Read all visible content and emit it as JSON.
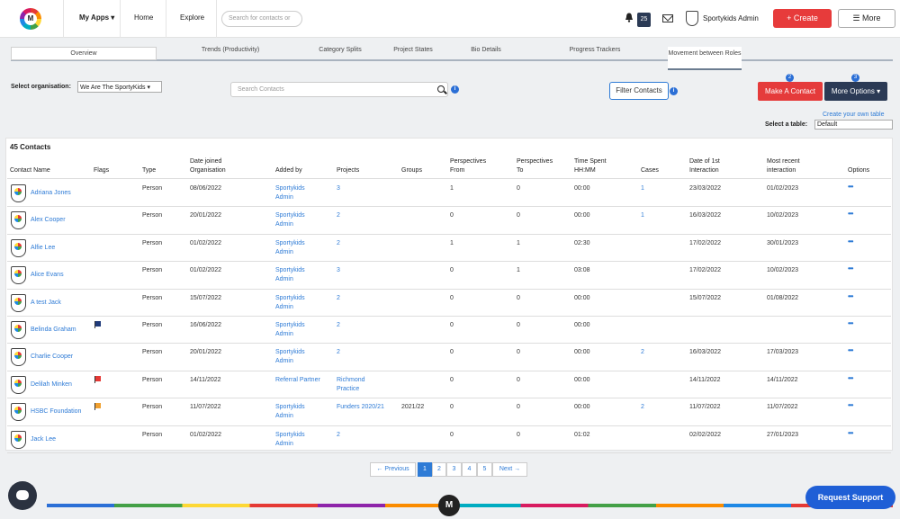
{
  "nav": {
    "my_apps": "My Apps ▾",
    "home": "Home",
    "explore": "Explore",
    "search_placeholder": "Search for contacts or",
    "notif_count": "25",
    "username": "Sportykids Admin",
    "create": "+ Create",
    "more": "☰ More"
  },
  "tabs": {
    "overview": "Overview",
    "trends": "Trends (Productivity)",
    "category": "Category Splits",
    "states": "Project States",
    "bio": "Bio Details",
    "progress": "Progress Trackers",
    "movement": "Movement between Roles"
  },
  "toolbar": {
    "org_label": "Select organisation:",
    "org_value": "We Are The SportyKids ▾",
    "search_placeholder": "Search Contacts",
    "filter": "Filter Contacts",
    "badge1": "2",
    "badge2": "3",
    "make_contact": "Make A Contact",
    "more_options": "More Options ▾",
    "create_own_table": "Create your own table",
    "select_table_label": "Select a table:",
    "select_table_value": "Default"
  },
  "table": {
    "count": "45 Contacts",
    "headers": {
      "name": "Contact Name",
      "flags": "Flags",
      "type": "Type",
      "date_joined_1": "Date joined",
      "date_joined_2": "Organisation",
      "added_by": "Added by",
      "projects": "Projects",
      "groups": "Groups",
      "persp_from_1": "Perspectives",
      "persp_from_2": "From",
      "persp_to_1": "Perspectives",
      "persp_to_2": "To",
      "time_1": "Time Spent",
      "time_2": "HH:MM",
      "cases": "Cases",
      "first_1": "Date of 1st",
      "first_2": "Interaction",
      "recent_1": "Most recent",
      "recent_2": "interaction",
      "options": "Options"
    },
    "rows": [
      {
        "name": "Adriana Jones",
        "type": "Person",
        "date": "08/06/2022",
        "added1": "Sportykids",
        "added2": "Admin",
        "projects1": "3",
        "projects2": "",
        "groups": "",
        "from": "1",
        "to": "0",
        "time": "00:00",
        "cases": "1",
        "first": "23/03/2022",
        "recent": "01/02/2023",
        "flag": "",
        "opt": "•••"
      },
      {
        "name": "Alex Cooper",
        "type": "Person",
        "date": "20/01/2022",
        "added1": "Sportykids",
        "added2": "Admin",
        "projects1": "2",
        "projects2": "",
        "groups": "",
        "from": "0",
        "to": "0",
        "time": "00:00",
        "cases": "1",
        "first": "16/03/2022",
        "recent": "10/02/2023",
        "flag": "",
        "opt": "•••"
      },
      {
        "name": "Alfie Lee",
        "type": "Person",
        "date": "01/02/2022",
        "added1": "Sportykids",
        "added2": "Admin",
        "projects1": "2",
        "projects2": "",
        "groups": "",
        "from": "1",
        "to": "1",
        "time": "02:30",
        "cases": "",
        "first": "17/02/2022",
        "recent": "30/01/2023",
        "flag": "",
        "opt": "•••"
      },
      {
        "name": "Alice Evans",
        "type": "Person",
        "date": "01/02/2022",
        "added1": "Sportykids",
        "added2": "Admin",
        "projects1": "3",
        "projects2": "",
        "groups": "",
        "from": "0",
        "to": "1",
        "time": "03:08",
        "cases": "",
        "first": "17/02/2022",
        "recent": "10/02/2023",
        "flag": "",
        "opt": "•••"
      },
      {
        "name": "A test Jack",
        "type": "Person",
        "date": "15/07/2022",
        "added1": "Sportykids",
        "added2": "Admin",
        "projects1": "2",
        "projects2": "",
        "groups": "",
        "from": "0",
        "to": "0",
        "time": "00:00",
        "cases": "",
        "first": "15/07/2022",
        "recent": "01/08/2022",
        "flag": "",
        "opt": "•••"
      },
      {
        "name": "Belinda Graham",
        "type": "Person",
        "date": "16/06/2022",
        "added1": "Sportykids",
        "added2": "Admin",
        "projects1": "2",
        "projects2": "",
        "groups": "",
        "from": "0",
        "to": "0",
        "time": "00:00",
        "cases": "",
        "first": "",
        "recent": "",
        "flag": "#1f3a7a",
        "opt": "•••"
      },
      {
        "name": "Charlie Cooper",
        "type": "Person",
        "date": "20/01/2022",
        "added1": "Sportykids",
        "added2": "Admin",
        "projects1": "2",
        "projects2": "",
        "groups": "",
        "from": "0",
        "to": "0",
        "time": "00:00",
        "cases": "2",
        "first": "16/03/2022",
        "recent": "17/03/2023",
        "flag": "",
        "opt": "•••"
      },
      {
        "name": "Delilah Minken",
        "type": "Person",
        "date": "14/11/2022",
        "added1": "Referral Partner",
        "added2": "",
        "projects1": "Richmond",
        "projects2": "Practice",
        "groups": "",
        "from": "0",
        "to": "0",
        "time": "00:00",
        "cases": "",
        "first": "14/11/2022",
        "recent": "14/11/2022",
        "flag": "#e53935",
        "opt": "•••"
      },
      {
        "name": "HSBC Foundation",
        "type": "Person",
        "date": "11/07/2022",
        "added1": "Sportykids",
        "added2": "Admin",
        "projects1": "Funders 2020/21",
        "projects2": "",
        "groups": "2021/22",
        "from": "0",
        "to": "0",
        "time": "00:00",
        "cases": "2",
        "first": "11/07/2022",
        "recent": "11/07/2022",
        "flag": "#f0a030",
        "opt": "•••"
      },
      {
        "name": "Jack Lee",
        "type": "Person",
        "date": "01/02/2022",
        "added1": "Sportykids",
        "added2": "Admin",
        "projects1": "2",
        "projects2": "",
        "groups": "",
        "from": "0",
        "to": "0",
        "time": "01:02",
        "cases": "",
        "first": "02/02/2022",
        "recent": "27/01/2023",
        "flag": "",
        "opt": "•••"
      }
    ]
  },
  "pagination": {
    "prev": "← Previous",
    "pages": [
      "1",
      "2",
      "3",
      "4",
      "5"
    ],
    "next": "Next →"
  },
  "footer": {
    "m": "M",
    "support": "Request Support"
  }
}
